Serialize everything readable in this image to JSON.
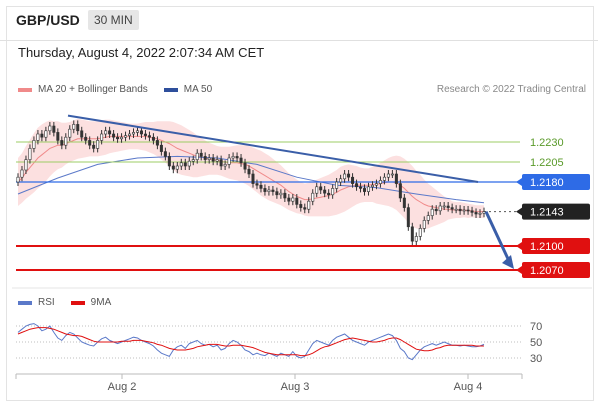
{
  "header": {
    "symbol": "GBP/USD",
    "timeframe": "30 MIN"
  },
  "datetime": "Thursday, August 4, 2022 2:07:34 AM CET",
  "legend_price": {
    "item1": "MA 20 + Bollinger Bands",
    "item2": "MA 50"
  },
  "legend_rsi": {
    "item1": "RSI",
    "item2": "9MA"
  },
  "copyright": "Research © 2022 Trading Central",
  "colors": {
    "bollinger_fill": "#fbd3d3",
    "ma20": "#f08a8a",
    "ma50": "#5b79c9",
    "trend": "#3a5ea8",
    "resistance_green": "#9ccc65",
    "pivot_blue": "#2e6be6",
    "support_red": "#e01010",
    "last_price": "#222222",
    "candle": "#333333",
    "rsi": "#5b79c9",
    "rsi_ma": "#e01010"
  },
  "chart_data": {
    "type": "candlestick",
    "title": "GBP/USD",
    "timeframe": "30 MIN",
    "x_ticks": [
      "Aug 2",
      "Aug 3",
      "Aug 4"
    ],
    "ylim": [
      1.2055,
      1.2285
    ],
    "levels": [
      {
        "value": 1.223,
        "label": "1.2230",
        "kind": "resistance"
      },
      {
        "value": 1.2205,
        "label": "1.2205",
        "kind": "resistance"
      },
      {
        "value": 1.218,
        "label": "1.2180",
        "kind": "pivot"
      },
      {
        "value": 1.2143,
        "label": "1.2143",
        "kind": "last_price"
      },
      {
        "value": 1.21,
        "label": "1.2100",
        "kind": "support"
      },
      {
        "value": 1.207,
        "label": "1.2070",
        "kind": "support"
      }
    ],
    "trendline": {
      "from": 1.2263,
      "to": 1.218
    },
    "forecast_target": 1.207,
    "close": [
      1.2186,
      1.2195,
      1.2208,
      1.2222,
      1.2232,
      1.224,
      1.2236,
      1.2244,
      1.225,
      1.2242,
      1.2232,
      1.2226,
      1.2236,
      1.2246,
      1.2252,
      1.2244,
      1.2236,
      1.2232,
      1.2226,
      1.2222,
      1.2232,
      1.224,
      1.2244,
      1.224,
      1.2236,
      1.2234,
      1.2236,
      1.2238,
      1.224,
      1.2242,
      1.2244,
      1.224,
      1.2238,
      1.2236,
      1.2232,
      1.2226,
      1.2218,
      1.2212,
      1.22,
      1.2196,
      1.22,
      1.2204,
      1.22,
      1.2206,
      1.2208,
      1.2216,
      1.2212,
      1.2208,
      1.221,
      1.2206,
      1.2208,
      1.22,
      1.2202,
      1.221,
      1.2212,
      1.221,
      1.2204,
      1.2196,
      1.219,
      1.2178,
      1.2176,
      1.2172,
      1.2168,
      1.217,
      1.2168,
      1.2164,
      1.2166,
      1.216,
      1.2156,
      1.216,
      1.2152,
      1.2148,
      1.2146,
      1.2156,
      1.2166,
      1.2174,
      1.217,
      1.2166,
      1.2164,
      1.2172,
      1.218,
      1.2184,
      1.219,
      1.2186,
      1.2178,
      1.2174,
      1.2172,
      1.2168,
      1.2174,
      1.2176,
      1.2178,
      1.2182,
      1.2186,
      1.219,
      1.219,
      1.2178,
      1.216,
      1.2148,
      1.2124,
      1.2106,
      1.2112,
      1.2122,
      1.2132,
      1.2138,
      1.2146,
      1.2144,
      1.215,
      1.215,
      1.2148,
      1.2146,
      1.2146,
      1.2144,
      1.2145,
      1.2144,
      1.2142,
      1.214,
      1.2141,
      1.2143
    ],
    "ma20": [
      1.218,
      1.2185,
      1.2192,
      1.2198,
      1.2204,
      1.221,
      1.2214,
      1.2218,
      1.2222,
      1.2224,
      1.2226,
      1.2226,
      1.2228,
      1.223,
      1.2232,
      1.2234,
      1.2234,
      1.2234,
      1.2234,
      1.2234,
      1.2234,
      1.2235,
      1.2236,
      1.2237,
      1.2237,
      1.2237,
      1.2237,
      1.2237,
      1.2237,
      1.2237,
      1.2237,
      1.2237,
      1.2237,
      1.2236,
      1.2235,
      1.2234,
      1.2232,
      1.223,
      1.2228,
      1.2225,
      1.2222,
      1.222,
      1.2218,
      1.2216,
      1.2214,
      1.2212,
      1.2211,
      1.221,
      1.2209,
      1.2208,
      1.2207,
      1.2206,
      1.2205,
      1.2204,
      1.2204,
      1.2204,
      1.2203,
      1.2202,
      1.22,
      1.2197,
      1.2194,
      1.2191,
      1.2188,
      1.2185,
      1.2182,
      1.2179,
      1.2176,
      1.2172,
      1.2168,
      1.2165,
      1.2162,
      1.216,
      1.2158,
      1.2158,
      1.2159,
      1.216,
      1.2161,
      1.2162,
      1.2163,
      1.2165,
      1.2167,
      1.217,
      1.2172,
      1.2174,
      1.2175,
      1.2176,
      1.2176,
      1.2176,
      1.2176,
      1.2177,
      1.2177,
      1.2178,
      1.2179,
      1.218,
      1.218,
      1.2179,
      1.2176,
      1.2172,
      1.2167,
      1.2162,
      1.2158,
      1.2155,
      1.2152,
      1.215,
      1.2149,
      1.2148,
      1.2147,
      1.2146,
      1.2146,
      1.2145,
      1.2145,
      1.2145,
      1.2145,
      1.2144,
      1.2144,
      1.2143,
      1.2143,
      1.2143
    ],
    "bb_width": [
      0.003,
      0.0031,
      0.0033,
      0.0035,
      0.0037,
      0.0038,
      0.0038,
      0.0037,
      0.0035,
      0.0032,
      0.003,
      0.0028,
      0.0026,
      0.0025,
      0.0025,
      0.0025,
      0.0024,
      0.0023,
      0.0022,
      0.0022,
      0.0022,
      0.0022,
      0.0022,
      0.0021,
      0.002,
      0.0019,
      0.0018,
      0.0017,
      0.0016,
      0.0016,
      0.0016,
      0.0017,
      0.0018,
      0.0019,
      0.002,
      0.0022,
      0.0024,
      0.0026,
      0.0028,
      0.003,
      0.0031,
      0.0031,
      0.003,
      0.0029,
      0.0028,
      0.0026,
      0.0024,
      0.0022,
      0.002,
      0.0019,
      0.0018,
      0.0018,
      0.0019,
      0.002,
      0.0021,
      0.0022,
      0.0023,
      0.0024,
      0.0025,
      0.0026,
      0.0027,
      0.0028,
      0.0028,
      0.0028,
      0.0027,
      0.0026,
      0.0025,
      0.0024,
      0.0023,
      0.0022,
      0.0021,
      0.002,
      0.002,
      0.0021,
      0.0022,
      0.0023,
      0.0024,
      0.0025,
      0.0026,
      0.0027,
      0.0028,
      0.0029,
      0.0029,
      0.0028,
      0.0026,
      0.0024,
      0.0022,
      0.0021,
      0.0021,
      0.0022,
      0.0024,
      0.0026,
      0.0028,
      0.003,
      0.0032,
      0.0034,
      0.0036,
      0.0037,
      0.0038,
      0.0038,
      0.0036,
      0.0034,
      0.0031,
      0.0028,
      0.0025,
      0.0022,
      0.0019,
      0.0016,
      0.0013,
      0.0011,
      0.001,
      0.001,
      0.0009,
      0.0009,
      0.0008,
      0.0008,
      0.0008,
      0.0008
    ],
    "ma50_start": 1.2165,
    "ma50_points": [
      [
        0,
        1.2165
      ],
      [
        10,
        1.2185
      ],
      [
        20,
        1.2202
      ],
      [
        30,
        1.221
      ],
      [
        40,
        1.2212
      ],
      [
        50,
        1.221
      ],
      [
        60,
        1.2202
      ],
      [
        70,
        1.2186
      ],
      [
        80,
        1.2176
      ],
      [
        90,
        1.2173
      ],
      [
        100,
        1.2165
      ],
      [
        110,
        1.2158
      ],
      [
        117,
        1.2154
      ]
    ],
    "rsi": {
      "ylim": [
        20,
        80
      ],
      "levels": [
        70,
        50,
        30
      ],
      "rsi": [
        62,
        66,
        70,
        72,
        73,
        70,
        64,
        66,
        70,
        62,
        55,
        52,
        58,
        62,
        60,
        55,
        50,
        48,
        46,
        45,
        50,
        54,
        56,
        52,
        50,
        48,
        50,
        52,
        54,
        56,
        55,
        52,
        50,
        48,
        45,
        40,
        36,
        34,
        32,
        40,
        44,
        46,
        42,
        48,
        50,
        52,
        48,
        46,
        47,
        44,
        46,
        40,
        42,
        48,
        52,
        50,
        46,
        40,
        38,
        34,
        36,
        34,
        33,
        36,
        34,
        32,
        36,
        34,
        32,
        38,
        32,
        30,
        32,
        40,
        48,
        52,
        50,
        48,
        46,
        52,
        56,
        58,
        60,
        56,
        52,
        50,
        48,
        46,
        50,
        52,
        54,
        56,
        58,
        60,
        58,
        52,
        42,
        38,
        30,
        28,
        34,
        40,
        44,
        46,
        48,
        46,
        48,
        50,
        48,
        46,
        46,
        45,
        46,
        45,
        44,
        44,
        45,
        47
      ],
      "ma": [
        60,
        62,
        64,
        66,
        67,
        68,
        68,
        68,
        67,
        66,
        64,
        62,
        60,
        59,
        58,
        58,
        57,
        55,
        53,
        51,
        50,
        50,
        50,
        50,
        50,
        50,
        51,
        51,
        51,
        52,
        52,
        52,
        51,
        50,
        49,
        47,
        46,
        44,
        42,
        41,
        40,
        40,
        40,
        41,
        42,
        44,
        45,
        46,
        47,
        47,
        47,
        46,
        45,
        45,
        46,
        46,
        46,
        45,
        44,
        43,
        41,
        39,
        37,
        36,
        35,
        34,
        34,
        34,
        34,
        34,
        34,
        33,
        33,
        34,
        36,
        39,
        42,
        44,
        45,
        47,
        49,
        51,
        53,
        54,
        55,
        54,
        53,
        52,
        51,
        50,
        50,
        51,
        52,
        54,
        55,
        55,
        53,
        50,
        47,
        44,
        41,
        40,
        39,
        39,
        40,
        42,
        43,
        45,
        46,
        46,
        46,
        46,
        46,
        46,
        46,
        45,
        45,
        45
      ]
    }
  }
}
